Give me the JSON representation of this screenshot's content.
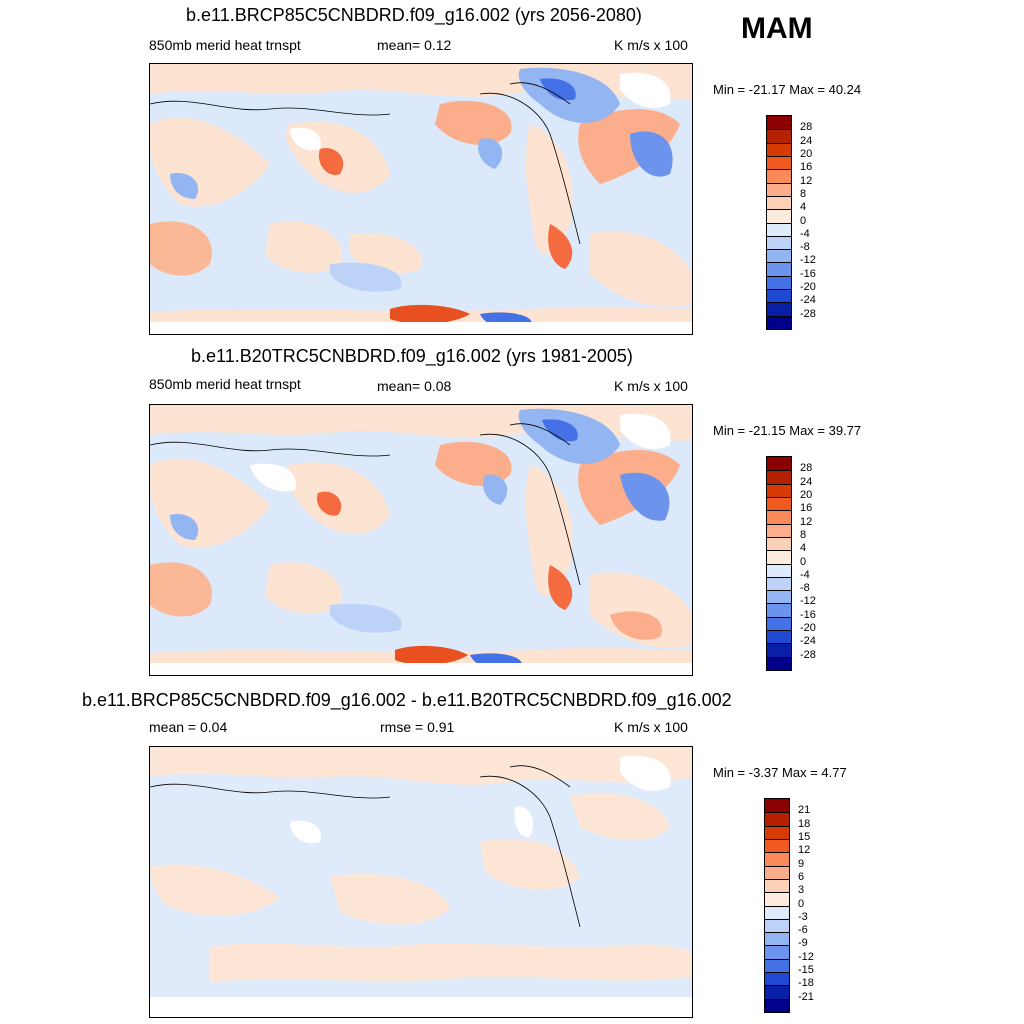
{
  "season": "MAM",
  "panels": [
    {
      "title": "b.e11.BRCP85C5CNBDRD.f09_g16.002 (yrs 2056-2080)",
      "left_label": "850mb merid heat trnspt",
      "center_label": "mean=   0.12",
      "right_label": "K m/s x 100",
      "minmax": "Min = -21.17 Max =  40.24",
      "colorbar": {
        "levels": [
          "28",
          "24",
          "20",
          "16",
          "12",
          "8",
          "4",
          "0",
          "-4",
          "-8",
          "-12",
          "-16",
          "-20",
          "-24",
          "-28"
        ],
        "colors": [
          "#8b0000",
          "#b52000",
          "#d63a05",
          "#f05a20",
          "#fb8a5a",
          "#fcae8c",
          "#fdd0b8",
          "#fdecde",
          "#dfeafb",
          "#bcd3f7",
          "#93b5f2",
          "#6d94ec",
          "#4571e6",
          "#1f49d2",
          "#0a1fa8",
          "#00008b"
        ]
      }
    },
    {
      "title": "b.e11.B20TRC5CNBDRD.f09_g16.002 (yrs 1981-2005)",
      "left_label": "850mb merid heat trnspt",
      "center_label": "mean=   0.08",
      "right_label": "K m/s x 100",
      "minmax": "Min = -21.15 Max =  39.77",
      "colorbar": {
        "levels": [
          "28",
          "24",
          "20",
          "16",
          "12",
          "8",
          "4",
          "0",
          "-4",
          "-8",
          "-12",
          "-16",
          "-20",
          "-24",
          "-28"
        ],
        "colors": [
          "#8b0000",
          "#b52000",
          "#d63a05",
          "#f05a20",
          "#fb8a5a",
          "#fcae8c",
          "#fdd0b8",
          "#fdecde",
          "#dfeafb",
          "#bcd3f7",
          "#93b5f2",
          "#6d94ec",
          "#4571e6",
          "#1f49d2",
          "#0a1fa8",
          "#00008b"
        ]
      }
    },
    {
      "title": "b.e11.BRCP85C5CNBDRD.f09_g16.002 - b.e11.B20TRC5CNBDRD.f09_g16.002",
      "left_label": "mean =   0.04",
      "center_label": "rmse =   0.91",
      "right_label": "K m/s x 100",
      "minmax": "Min =  -3.37 Max =   4.77",
      "colorbar": {
        "levels": [
          "21",
          "18",
          "15",
          "12",
          "9",
          "6",
          "3",
          "0",
          "-3",
          "-6",
          "-9",
          "-12",
          "-15",
          "-18",
          "-21"
        ],
        "colors": [
          "#8b0000",
          "#b52000",
          "#d63a05",
          "#f05a20",
          "#fb8a5a",
          "#fcae8c",
          "#fdd0b8",
          "#fdecde",
          "#dfeafb",
          "#bcd3f7",
          "#93b5f2",
          "#6d94ec",
          "#4571e6",
          "#1f49d2",
          "#0a1fa8",
          "#00008b"
        ]
      }
    }
  ]
}
